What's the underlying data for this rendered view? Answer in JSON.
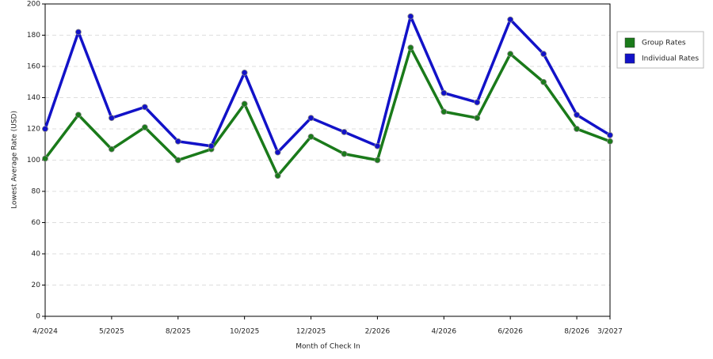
{
  "chart_data": {
    "type": "line",
    "x_label": "Month of Check In",
    "y_label": "Lowest Average Rate (USD)",
    "categories": [
      "4/2024",
      null,
      "5/2025",
      null,
      "8/2025",
      null,
      "10/2025",
      null,
      "12/2025",
      null,
      "2/2026",
      null,
      "4/2026",
      null,
      "6/2026",
      null,
      "8/2026",
      "3/2027"
    ],
    "series": [
      {
        "name": "Group Rates",
        "color": "#1a7a1a",
        "values": [
          101,
          129,
          107,
          121,
          100,
          107,
          136,
          90,
          115,
          104,
          100,
          172,
          131,
          127,
          168,
          150,
          120,
          112
        ]
      },
      {
        "name": "Individual Rates",
        "color": "#1212c8",
        "values": [
          120,
          182,
          127,
          134,
          112,
          109,
          156,
          105,
          127,
          118,
          109,
          192,
          143,
          137,
          190,
          168,
          129,
          116
        ]
      }
    ],
    "ylim": [
      0,
      200
    ],
    "yticks": [
      0,
      20,
      40,
      60,
      80,
      100,
      120,
      140,
      160,
      180,
      200
    ],
    "grid": true,
    "legend": "right"
  }
}
